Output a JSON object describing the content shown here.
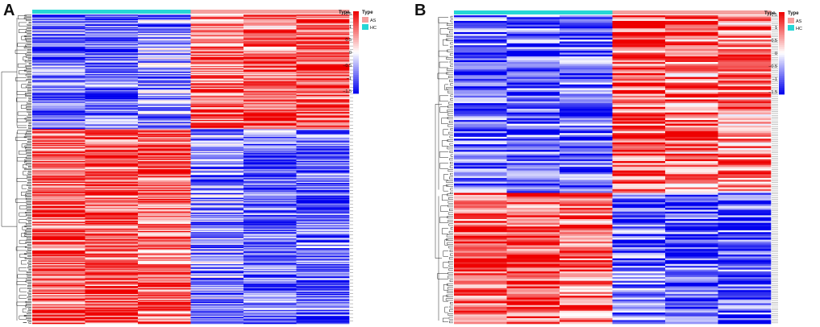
{
  "chart_data": [
    {
      "type": "heatmap",
      "panel_label": "A",
      "legend_title": "Type",
      "group_legend": [
        {
          "name": "AS",
          "color": "#f4a09e"
        },
        {
          "name": "HC",
          "color": "#26d6d6"
        }
      ],
      "scale_ticks": [
        "1.5",
        "1",
        "0.5",
        "0",
        "−0.5",
        "−1",
        "−1.5"
      ],
      "scale_range": [
        -1.5,
        1.5
      ],
      "color_low": "#0000ee",
      "color_mid": "#ffffff",
      "color_high": "#ee0000",
      "columns": [
        {
          "group": "HC"
        },
        {
          "group": "HC"
        },
        {
          "group": "HC"
        },
        {
          "group": "AS"
        },
        {
          "group": "AS"
        },
        {
          "group": "AS"
        }
      ],
      "row_blocks": [
        {
          "rows": 100,
          "values": [
            -0.8,
            -0.9,
            -0.7,
            0.9,
            0.8,
            1.0
          ]
        },
        {
          "rows": 170,
          "values": [
            1.0,
            1.0,
            0.9,
            -0.7,
            -0.9,
            -0.9
          ]
        }
      ]
    },
    {
      "type": "heatmap",
      "panel_label": "B",
      "legend_title": "Type",
      "group_legend": [
        {
          "name": "AS",
          "color": "#f4a09e"
        },
        {
          "name": "HC",
          "color": "#26d6d6"
        }
      ],
      "scale_ticks": [
        "1.5",
        "1",
        "0.5",
        "0",
        "−0.5",
        "−1",
        "−1.5"
      ],
      "scale_range": [
        -1.5,
        1.5
      ],
      "color_low": "#0000ee",
      "color_mid": "#ffffff",
      "color_high": "#ee0000",
      "columns": [
        {
          "group": "HC"
        },
        {
          "group": "HC"
        },
        {
          "group": "HC"
        },
        {
          "group": "AS"
        },
        {
          "group": "AS"
        },
        {
          "group": "AS"
        }
      ],
      "row_blocks": [
        {
          "rows": 95,
          "values": [
            -0.9,
            -0.9,
            -0.9,
            1.0,
            0.8,
            0.8
          ]
        },
        {
          "rows": 70,
          "values": [
            1.0,
            1.0,
            0.9,
            -0.8,
            -1.0,
            -1.0
          ]
        }
      ]
    }
  ]
}
